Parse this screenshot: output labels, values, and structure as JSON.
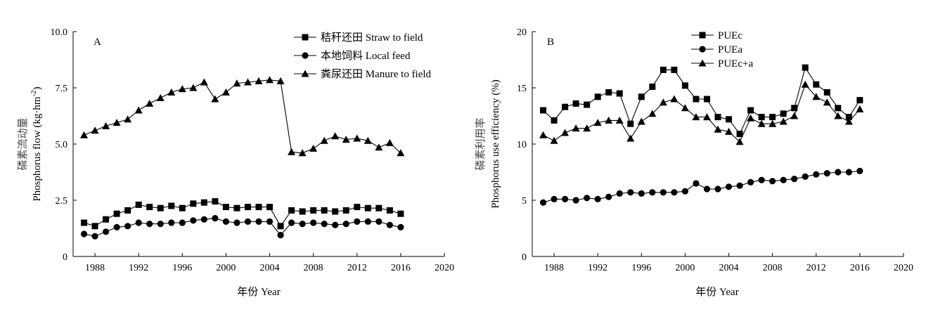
{
  "chart_data": [
    {
      "type": "line",
      "panel_label": "A",
      "xlabel": "年份 Year",
      "ylabel_cn": "磷素流动量",
      "ylabel_en": "Phosphorus flow (kg·hm",
      "ylabel_en_sup": "-2",
      "ylabel_en_end": ")",
      "xlim": [
        1986,
        2020
      ],
      "ylim": [
        0,
        10
      ],
      "x_ticks": [
        1988,
        1992,
        1996,
        2000,
        2004,
        2008,
        2012,
        2016,
        2020
      ],
      "x_tick_labels": [
        "1988",
        "1992",
        "1996",
        "2000",
        "2004",
        "2008",
        "2012",
        "2016",
        "2020"
      ],
      "y_ticks": [
        0,
        2.5,
        5,
        7.5,
        10
      ],
      "y_tick_labels": [
        "0",
        "2.5",
        "5.0",
        "7.5",
        "10.0"
      ],
      "legend_position": "top-right",
      "grid": false,
      "x": [
        1987,
        1988,
        1989,
        1990,
        1991,
        1992,
        1993,
        1994,
        1995,
        1996,
        1997,
        1998,
        1999,
        2000,
        2001,
        2002,
        2003,
        2004,
        2005,
        2006,
        2007,
        2008,
        2009,
        2010,
        2011,
        2012,
        2013,
        2014,
        2015,
        2016
      ],
      "series": [
        {
          "name": "秸秆还田 Straw to field",
          "marker": "square",
          "values": [
            1.5,
            1.35,
            1.65,
            1.9,
            2.05,
            2.3,
            2.2,
            2.15,
            2.25,
            2.15,
            2.35,
            2.4,
            2.45,
            2.2,
            2.15,
            2.2,
            2.2,
            2.2,
            1.35,
            2.05,
            2.0,
            2.05,
            2.05,
            2.0,
            2.05,
            2.2,
            2.15,
            2.15,
            2.05,
            1.9
          ]
        },
        {
          "name": "本地饲料 Local feed",
          "marker": "circle",
          "values": [
            1.0,
            0.9,
            1.1,
            1.3,
            1.35,
            1.5,
            1.45,
            1.45,
            1.5,
            1.5,
            1.6,
            1.65,
            1.7,
            1.55,
            1.5,
            1.55,
            1.55,
            1.55,
            0.95,
            1.5,
            1.45,
            1.5,
            1.45,
            1.4,
            1.45,
            1.55,
            1.55,
            1.55,
            1.4,
            1.3
          ]
        },
        {
          "name": "粪尿还田 Manure to field",
          "marker": "triangle",
          "values": [
            5.4,
            5.6,
            5.8,
            5.95,
            6.1,
            6.5,
            6.8,
            7.05,
            7.3,
            7.45,
            7.5,
            7.75,
            7.0,
            7.3,
            7.7,
            7.75,
            7.8,
            7.85,
            7.8,
            4.65,
            4.6,
            4.8,
            5.15,
            5.35,
            5.2,
            5.25,
            5.15,
            4.85,
            5.05,
            4.6
          ]
        }
      ]
    },
    {
      "type": "line",
      "panel_label": "B",
      "xlabel": "年份 Year",
      "ylabel_cn": "磷素利用率",
      "ylabel_en": "Phosphorus use efficiency (%)",
      "xlim": [
        1986,
        2020
      ],
      "ylim": [
        0,
        20
      ],
      "x_ticks": [
        1988,
        1992,
        1996,
        2000,
        2004,
        2008,
        2012,
        2016,
        2020
      ],
      "x_tick_labels": [
        "1988",
        "1992",
        "1996",
        "2000",
        "2004",
        "2008",
        "2012",
        "2016",
        "2020"
      ],
      "y_ticks": [
        0,
        5,
        10,
        15,
        20
      ],
      "y_tick_labels": [
        "0",
        "5",
        "10",
        "15",
        "20"
      ],
      "legend_position": "top-left",
      "grid": false,
      "x": [
        1987,
        1988,
        1989,
        1990,
        1991,
        1992,
        1993,
        1994,
        1995,
        1996,
        1997,
        1998,
        1999,
        2000,
        2001,
        2002,
        2003,
        2004,
        2005,
        2006,
        2007,
        2008,
        2009,
        2010,
        2011,
        2012,
        2013,
        2014,
        2015,
        2016
      ],
      "series": [
        {
          "name": "PUEc",
          "marker": "square",
          "values": [
            13.0,
            12.1,
            13.3,
            13.6,
            13.5,
            14.2,
            14.6,
            14.5,
            11.8,
            14.2,
            15.1,
            16.6,
            16.6,
            15.2,
            14.0,
            14.0,
            12.4,
            12.2,
            10.9,
            13.0,
            12.4,
            12.4,
            12.7,
            13.2,
            16.8,
            15.3,
            14.6,
            13.2,
            12.4,
            13.9
          ]
        },
        {
          "name": "PUEa",
          "marker": "circle",
          "values": [
            4.8,
            5.1,
            5.1,
            5.0,
            5.2,
            5.1,
            5.3,
            5.6,
            5.7,
            5.6,
            5.7,
            5.7,
            5.7,
            5.8,
            6.5,
            6.0,
            6.0,
            6.2,
            6.3,
            6.6,
            6.8,
            6.7,
            6.8,
            6.9,
            7.1,
            7.3,
            7.4,
            7.5,
            7.5,
            7.6
          ]
        },
        {
          "name": "PUEc+a",
          "marker": "triangle",
          "values": [
            10.8,
            10.3,
            11.0,
            11.4,
            11.4,
            11.9,
            12.1,
            12.1,
            10.5,
            12.0,
            12.7,
            13.7,
            14.0,
            13.2,
            12.4,
            12.4,
            11.3,
            11.1,
            10.2,
            12.3,
            11.8,
            11.8,
            12.0,
            12.5,
            15.3,
            14.2,
            13.7,
            12.5,
            12.0,
            13.1
          ]
        }
      ]
    }
  ]
}
